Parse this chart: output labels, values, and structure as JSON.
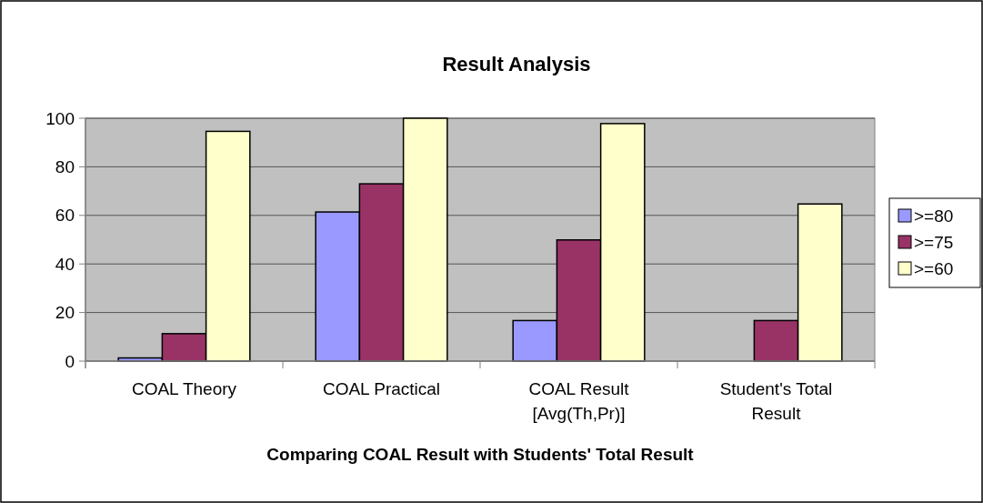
{
  "chart_data": {
    "type": "bar",
    "title": "Result Analysis",
    "xlabel": "Comparing COAL Result with Students' Total Result",
    "categories": [
      "COAL Theory",
      "COAL Practical",
      "COAL Result [Avg(Th,Pr)]",
      "Student's Total Result"
    ],
    "series": [
      {
        "name": ">=80",
        "color": "#9999ff",
        "values": [
          1.3,
          61.4,
          16.7,
          0
        ]
      },
      {
        "name": ">=75",
        "color": "#993366",
        "values": [
          11.3,
          73,
          49.9,
          16.7
        ]
      },
      {
        "name": ">=60",
        "color": "#ffffcc",
        "values": [
          94.6,
          100,
          97.8,
          64.7
        ]
      }
    ],
    "ylim": [
      0,
      100
    ],
    "yticks": [
      0,
      20,
      40,
      60,
      80,
      100
    ],
    "grid": "y",
    "legend": "right"
  }
}
